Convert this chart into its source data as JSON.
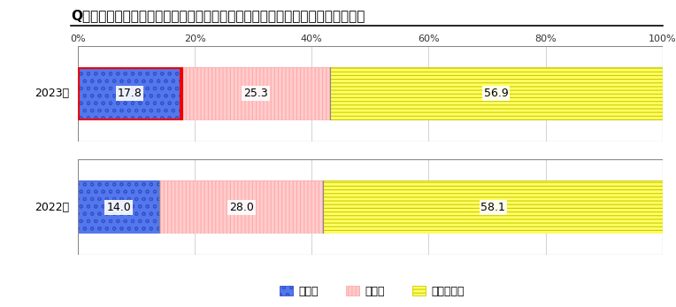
{
  "title": "Q．昨年同時期と比較して、収入に増減はありますか（２０～５０代のみ回答）",
  "years": [
    "2023年",
    "2022年"
  ],
  "values": [
    [
      17.8,
      25.3,
      56.9
    ],
    [
      14.0,
      28.0,
      58.1
    ]
  ],
  "face_colors": [
    "#5577ee",
    "#ffcccc",
    "#ffff66"
  ],
  "hatch_patterns": [
    "oo",
    "||||",
    "----"
  ],
  "hatch_colors": [
    "#3355cc",
    "#ffaaaa",
    "#cccc00"
  ],
  "bar_border_color": "#888888",
  "outer_border_color": "#aaaaaa",
  "grid_color": "#cccccc",
  "highlight_color": "#ee0000",
  "legend_labels": [
    "増えた",
    "減った",
    "変わらない"
  ],
  "xlabel_ticks": [
    0,
    20,
    40,
    60,
    80,
    100
  ],
  "background_color": "#ffffff",
  "text_color": "#000000",
  "fontsize_title": 11,
  "fontsize_labels": 9,
  "fontsize_values": 9,
  "fontsize_tick": 8
}
